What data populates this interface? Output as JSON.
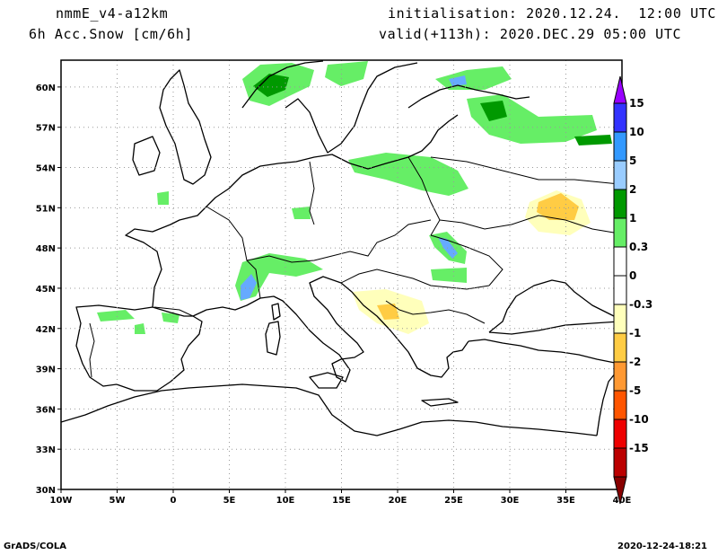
{
  "header": {
    "model": "nmmE_v4-a12km",
    "field": "6h Acc.Snow [cm/6h]",
    "initialisation": "initialisation: 2020.12.24.  12:00 UTC",
    "valid": "valid(+113h): 2020.DEC.29 05:00 UTC"
  },
  "footer": {
    "credit": "GrADS/COLA",
    "timestamp": "2020-12-24-18:21"
  },
  "map": {
    "lon_range": [
      -10,
      40
    ],
    "lat_range": [
      30,
      62
    ],
    "x_ticks": [
      "10W",
      "5W",
      "0",
      "5E",
      "10E",
      "15E",
      "20E",
      "25E",
      "30E",
      "35E",
      "40E"
    ],
    "y_ticks": [
      "30N",
      "33N",
      "36N",
      "39N",
      "42N",
      "45N",
      "48N",
      "51N",
      "54N",
      "57N",
      "60N"
    ],
    "grid": "dotted"
  },
  "colorbar": {
    "bins": [
      {
        "color": "#9900ff"
      },
      {
        "color": "#3333ff"
      },
      {
        "color": "#3399ff"
      },
      {
        "color": "#99ccff"
      },
      {
        "color": "#009900"
      },
      {
        "color": "#66ee66"
      },
      {
        "color": "#ffffff"
      },
      {
        "color": "#ffffff"
      },
      {
        "color": "#ffffbb"
      },
      {
        "color": "#ffcc44"
      },
      {
        "color": "#ff9933"
      },
      {
        "color": "#ff5500"
      },
      {
        "color": "#ee0000"
      },
      {
        "color": "#bb0000"
      },
      {
        "color": "#880000"
      }
    ],
    "labels": [
      "15",
      "10",
      "5",
      "2",
      "1",
      "0.3",
      "0",
      "-0.3",
      "-1",
      "-2",
      "-5",
      "-10",
      "-15"
    ]
  }
}
